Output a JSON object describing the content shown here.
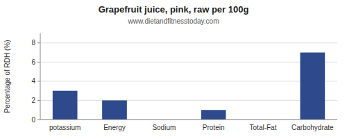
{
  "chart_data": {
    "type": "bar",
    "title": "Grapefruit juice, pink, raw per 100g",
    "subtitle": "www.dietandfitnesstoday.com",
    "categories": [
      "potassium",
      "Energy",
      "Sodium",
      "Protein",
      "Total-Fat",
      "Carbohydrate"
    ],
    "values": [
      3.0,
      2.0,
      0.0,
      1.0,
      0.0,
      7.0
    ],
    "color": "#2e4a8c",
    "ylabel": "Percentage of RDH (%)",
    "ylim": [
      0,
      9
    ],
    "yticks": [
      0,
      2,
      4,
      6,
      8
    ],
    "grid": true
  }
}
